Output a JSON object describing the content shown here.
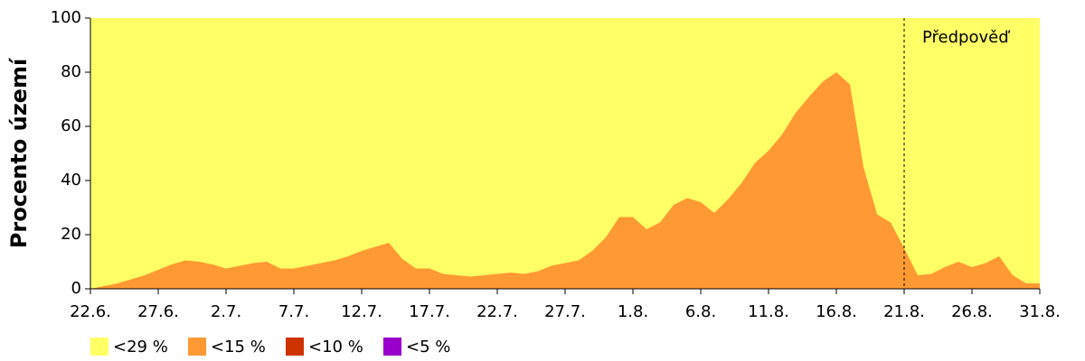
{
  "chart_data": {
    "type": "area",
    "y_label": "Procento území",
    "x": [
      0,
      1,
      2,
      3,
      4,
      5,
      6,
      7,
      8,
      9,
      10,
      11,
      12,
      13,
      14,
      15,
      16,
      17,
      18,
      19,
      20,
      21,
      22,
      23,
      24,
      25,
      26,
      27,
      28,
      29,
      30,
      31,
      32,
      33,
      34,
      35,
      36,
      37,
      38,
      39,
      40,
      41,
      42,
      43,
      44,
      45,
      46,
      47,
      48,
      49,
      50,
      51,
      52,
      53,
      54,
      55,
      56,
      57,
      58,
      59,
      60,
      61,
      62,
      63,
      64,
      65,
      66,
      67,
      68,
      69,
      70
    ],
    "series": [
      {
        "name": "<29 %",
        "color": "#ffff66",
        "values": [
          100,
          100,
          100,
          100,
          100,
          100,
          100,
          100,
          100,
          100,
          100,
          100,
          100,
          100,
          100,
          100,
          100,
          100,
          100,
          100,
          100,
          100,
          100,
          100,
          100,
          100,
          100,
          100,
          100,
          100,
          100,
          100,
          100,
          100,
          100,
          100,
          100,
          100,
          100,
          100,
          100,
          100,
          100,
          100,
          100,
          100,
          100,
          100,
          100,
          100,
          100,
          100,
          100,
          100,
          100,
          100,
          100,
          100,
          100,
          100,
          100,
          100,
          100,
          100,
          100,
          100,
          100,
          100,
          100,
          100,
          100
        ]
      },
      {
        "name": "<15 %",
        "color": "#ff9933",
        "values": [
          0,
          1,
          2,
          3.5,
          5,
          7,
          9,
          10.5,
          10,
          9,
          7.5,
          8.5,
          9.5,
          10,
          7.5,
          7.5,
          8.5,
          9.5,
          10.5,
          12,
          14,
          15.5,
          17,
          11,
          7.5,
          7.5,
          5.5,
          5,
          4.5,
          5,
          5.5,
          6,
          5.5,
          6.5,
          8.5,
          9.5,
          10.5,
          14,
          19,
          26.5,
          26.5,
          22,
          24.5,
          31,
          33.5,
          32,
          28,
          33,
          39,
          46.5,
          51,
          57,
          65,
          71,
          76.5,
          80,
          75.5,
          45,
          27.5,
          24.5,
          15,
          5,
          5.5,
          8,
          10,
          8,
          9.5,
          12,
          5,
          2,
          2
        ]
      },
      {
        "name": "<10 %",
        "color": "#cc3300",
        "values": [
          0,
          0,
          0,
          0,
          0,
          0,
          0,
          0,
          0,
          0,
          0,
          0,
          0,
          0,
          0,
          0,
          0,
          0,
          0,
          0,
          0,
          0,
          0,
          0,
          0,
          0,
          0,
          0,
          0,
          0,
          0,
          0,
          0,
          0,
          0,
          0,
          0,
          0,
          0,
          0,
          0,
          0,
          0,
          0,
          0,
          0,
          0,
          0,
          0,
          0,
          0,
          0,
          0,
          0,
          0,
          0,
          0,
          0,
          0,
          0,
          0,
          0,
          0,
          0,
          0,
          0,
          0,
          0,
          0,
          0,
          0
        ]
      },
      {
        "name": "<5 %",
        "color": "#9900cc",
        "values": [
          0,
          0,
          0,
          0,
          0,
          0,
          0,
          0,
          0,
          0,
          0,
          0,
          0,
          0,
          0,
          0,
          0,
          0,
          0,
          0,
          0,
          0,
          0,
          0,
          0,
          0,
          0,
          0,
          0,
          0,
          0,
          0,
          0,
          0,
          0,
          0,
          0,
          0,
          0,
          0,
          0,
          0,
          0,
          0,
          0,
          0,
          0,
          0,
          0,
          0,
          0,
          0,
          0,
          0,
          0,
          0,
          0,
          0,
          0,
          0,
          0,
          0,
          0,
          0,
          0,
          0,
          0,
          0,
          0,
          0,
          0
        ]
      }
    ],
    "xlim": [
      0,
      70
    ],
    "xticks": [
      {
        "value": 0,
        "label": "22.6."
      },
      {
        "value": 5,
        "label": "27.6."
      },
      {
        "value": 10,
        "label": "2.7."
      },
      {
        "value": 15,
        "label": "7.7."
      },
      {
        "value": 20,
        "label": "12.7."
      },
      {
        "value": 25,
        "label": "17.7."
      },
      {
        "value": 30,
        "label": "22.7."
      },
      {
        "value": 35,
        "label": "27.7."
      },
      {
        "value": 40,
        "label": "1.8."
      },
      {
        "value": 45,
        "label": "6.8."
      },
      {
        "value": 50,
        "label": "11.8."
      },
      {
        "value": 55,
        "label": "16.8."
      },
      {
        "value": 60,
        "label": "21.8."
      },
      {
        "value": 65,
        "label": "26.8."
      },
      {
        "value": 70,
        "label": "31.8."
      }
    ],
    "ylim": [
      0,
      100
    ],
    "yticks": [
      0,
      20,
      40,
      60,
      80,
      100
    ],
    "annotation": {
      "text": "Předpověď",
      "x": 60
    },
    "legend": "bottom"
  }
}
